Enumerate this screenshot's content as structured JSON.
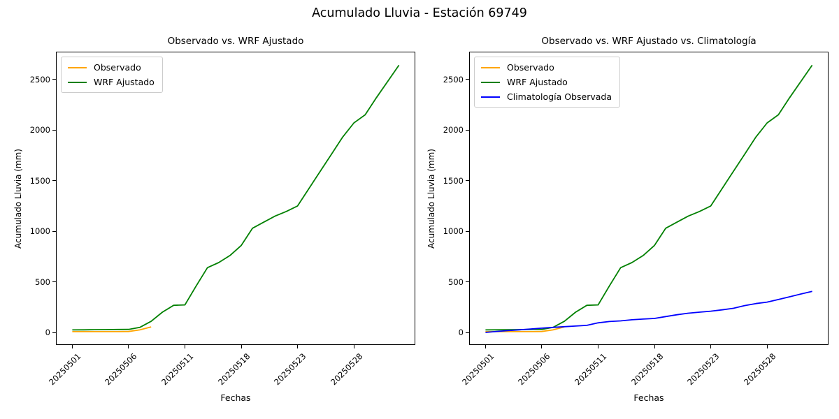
{
  "figure": {
    "suptitle": "Acumulado Lluvia - Estación 69749",
    "background": "#ffffff"
  },
  "chart_data": [
    {
      "type": "line",
      "title": "Observado vs. WRF Ajustado",
      "xlabel": "Fechas",
      "ylabel": "Acumulado Lluvia (mm)",
      "grid": false,
      "legend_position": "upper-left",
      "ylim": [
        -124,
        2774
      ],
      "xlim": [
        -1.45,
        30.45
      ],
      "yticks": [
        0,
        500,
        1000,
        1500,
        2000,
        2500
      ],
      "categories": [
        "20250501",
        "20250502",
        "20250503",
        "20250504",
        "20250505",
        "20250506",
        "20250507",
        "20250508",
        "20250509",
        "20250510",
        "20250511",
        "20250513",
        "20250514",
        "20250515",
        "20250516",
        "20250518",
        "20250519",
        "20250520",
        "20250521",
        "20250522",
        "20250523",
        "20250524",
        "20250525",
        "20250526",
        "20250527",
        "20250528",
        "20250529",
        "20250530",
        "20250531",
        "20250601"
      ],
      "xticks": {
        "indices": [
          0,
          5,
          10,
          15,
          20,
          25
        ],
        "labels": [
          "20250501",
          "20250506",
          "20250511",
          "20250518",
          "20250523",
          "20250528"
        ]
      },
      "series": [
        {
          "name": "Observado",
          "color": "#FFA500",
          "values": [
            8,
            8,
            8,
            8,
            8,
            9,
            25,
            55
          ]
        },
        {
          "name": "WRF Ajustado",
          "color": "#008000",
          "values": [
            25,
            26,
            27,
            28,
            29,
            30,
            50,
            110,
            200,
            268,
            272,
            460,
            640,
            690,
            760,
            860,
            1030,
            1090,
            1150,
            1195,
            1250,
            1420,
            1590,
            1760,
            1930,
            2070,
            2150,
            2320,
            2480,
            2640
          ]
        }
      ]
    },
    {
      "type": "line",
      "title": "Observado vs. WRF Ajustado vs. Climatología",
      "xlabel": "Fechas",
      "ylabel": "Acumulado Lluvia (mm)",
      "grid": false,
      "legend_position": "upper-left",
      "ylim": [
        -124,
        2774
      ],
      "xlim": [
        -1.45,
        30.45
      ],
      "yticks": [
        0,
        500,
        1000,
        1500,
        2000,
        2500
      ],
      "categories": [
        "20250501",
        "20250502",
        "20250503",
        "20250504",
        "20250505",
        "20250506",
        "20250507",
        "20250508",
        "20250509",
        "20250510",
        "20250511",
        "20250513",
        "20250514",
        "20250515",
        "20250516",
        "20250518",
        "20250519",
        "20250520",
        "20250521",
        "20250522",
        "20250523",
        "20250524",
        "20250525",
        "20250526",
        "20250527",
        "20250528",
        "20250529",
        "20250530",
        "20250531",
        "20250601"
      ],
      "xticks": {
        "indices": [
          0,
          5,
          10,
          15,
          20,
          25
        ],
        "labels": [
          "20250501",
          "20250506",
          "20250511",
          "20250518",
          "20250523",
          "20250528"
        ]
      },
      "series": [
        {
          "name": "Observado",
          "color": "#FFA500",
          "values": [
            8,
            8,
            8,
            8,
            8,
            9,
            25,
            55
          ]
        },
        {
          "name": "WRF Ajustado",
          "color": "#008000",
          "values": [
            25,
            26,
            27,
            28,
            29,
            30,
            50,
            110,
            200,
            268,
            272,
            460,
            640,
            690,
            760,
            860,
            1030,
            1090,
            1150,
            1195,
            1250,
            1420,
            1590,
            1760,
            1930,
            2070,
            2150,
            2320,
            2480,
            2640
          ]
        },
        {
          "name": "Climatología Observada",
          "color": "#0000FF",
          "values": [
            0,
            10,
            18,
            26,
            34,
            42,
            50,
            57,
            63,
            70,
            95,
            108,
            114,
            125,
            132,
            138,
            157,
            175,
            190,
            200,
            210,
            223,
            238,
            265,
            285,
            300,
            325,
            352,
            380,
            405
          ]
        }
      ]
    }
  ]
}
